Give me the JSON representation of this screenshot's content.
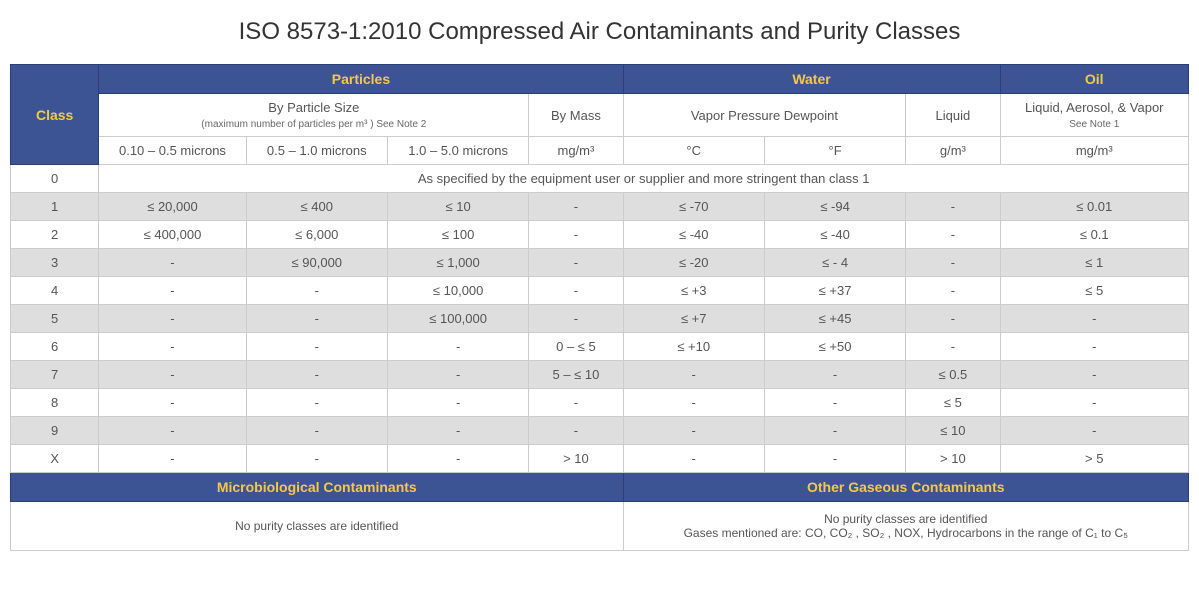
{
  "title": "ISO 8573-1:2010 Compressed Air Contaminants and Purity Classes",
  "colors": {
    "header_bg": "#3c5494",
    "header_text": "#f6c945",
    "header_white": "#ffffff",
    "row_even": "#dedede",
    "row_odd": "#ffffff",
    "border": "#cccccc"
  },
  "groupHeaders": {
    "class": "Class",
    "particles": "Particles",
    "water": "Water",
    "oil": "Oil"
  },
  "subHeaders": {
    "byParticleSize": "By Particle Size",
    "byParticleSizeNote": "(maximum number of particles per m³ ) See Note 2",
    "byMass": "By Mass",
    "vaporPressure": "Vapor Pressure Dewpoint",
    "liquid": "Liquid",
    "oilLong": "Liquid, Aerosol, & Vapor",
    "oilNote": "See Note 1"
  },
  "unitHeaders": {
    "p1": "0.10 – 0.5 microns",
    "p2": "0.5 – 1.0 microns",
    "p3": "1.0 – 5.0 microns",
    "mass": "mg/m³",
    "c": "°C",
    "f": "°F",
    "liq": "g/m³",
    "oil": "mg/m³"
  },
  "row0": {
    "class": "0",
    "span": "As specified by the equipment user or supplier and more stringent than class 1"
  },
  "rows": [
    {
      "class": "1",
      "p1": "≤ 20,000",
      "p2": "≤ 400",
      "p3": "≤ 10",
      "mass": "-",
      "c": "≤ -70",
      "f": "≤ -94",
      "liq": "-",
      "oil": "≤ 0.01"
    },
    {
      "class": "2",
      "p1": "≤ 400,000",
      "p2": "≤ 6,000",
      "p3": "≤ 100",
      "mass": "-",
      "c": "≤ -40",
      "f": "≤ -40",
      "liq": "-",
      "oil": "≤ 0.1"
    },
    {
      "class": "3",
      "p1": "-",
      "p2": "≤ 90,000",
      "p3": "≤ 1,000",
      "mass": "-",
      "c": "≤ -20",
      "f": "≤ - 4",
      "liq": "-",
      "oil": "≤ 1"
    },
    {
      "class": "4",
      "p1": "-",
      "p2": "-",
      "p3": "≤ 10,000",
      "mass": "-",
      "c": "≤ +3",
      "f": "≤ +37",
      "liq": "-",
      "oil": "≤ 5"
    },
    {
      "class": "5",
      "p1": "-",
      "p2": "-",
      "p3": "≤ 100,000",
      "mass": "-",
      "c": "≤ +7",
      "f": "≤ +45",
      "liq": "-",
      "oil": "-"
    },
    {
      "class": "6",
      "p1": "-",
      "p2": "-",
      "p3": "-",
      "mass": "0 – ≤ 5",
      "c": "≤ +10",
      "f": "≤ +50",
      "liq": "-",
      "oil": "-"
    },
    {
      "class": "7",
      "p1": "-",
      "p2": "-",
      "p3": "-",
      "mass": "5 – ≤ 10",
      "c": "-",
      "f": "-",
      "liq": "≤ 0.5",
      "oil": "-"
    },
    {
      "class": "8",
      "p1": "-",
      "p2": "-",
      "p3": "-",
      "mass": "-",
      "c": "-",
      "f": "-",
      "liq": "≤ 5",
      "oil": "-"
    },
    {
      "class": "9",
      "p1": "-",
      "p2": "-",
      "p3": "-",
      "mass": "-",
      "c": "-",
      "f": "-",
      "liq": "≤ 10",
      "oil": "-"
    },
    {
      "class": "X",
      "p1": "-",
      "p2": "-",
      "p3": "-",
      "mass": "> 10",
      "c": "-",
      "f": "-",
      "liq": "> 10",
      "oil": "> 5"
    }
  ],
  "footer": {
    "micro_hdr": "Microbiological Contaminants",
    "gas_hdr": "Other Gaseous Contaminants",
    "micro_text": "No purity classes are identified",
    "gas_text1": "No purity classes are identified",
    "gas_text2": "Gases mentioned are: CO, CO₂ , SO₂ , NOX, Hydrocarbons in the range of C₁  to C₅"
  }
}
